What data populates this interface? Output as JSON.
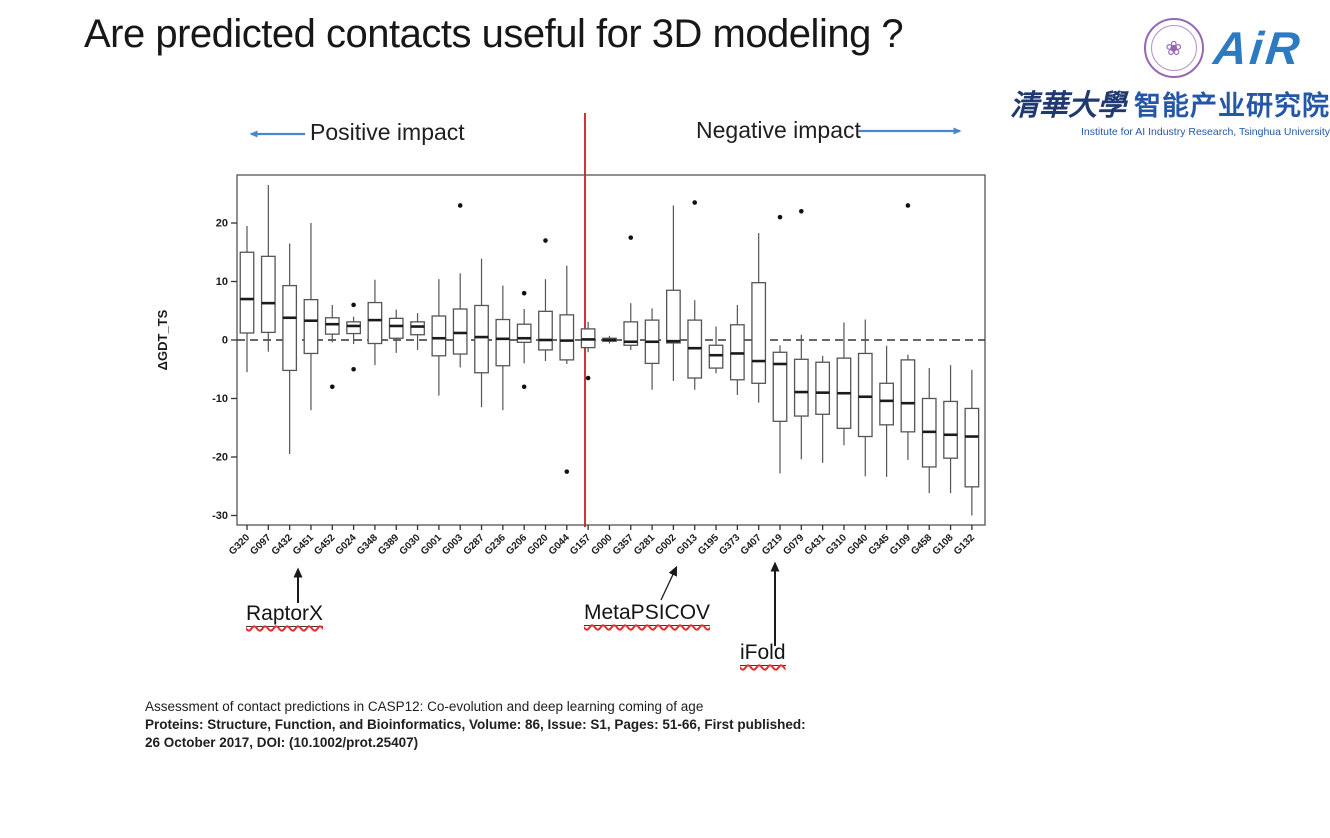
{
  "slide": {
    "title": "Are predicted contacts useful for 3D modeling ?"
  },
  "logo": {
    "seal_icon": "tsinghua-seal",
    "air_text": "AiR",
    "cn_calligraphy": "清華大學",
    "cn_name": "智能产业研究院",
    "en_caption": "Institute for AI Industry Research, Tsinghua University"
  },
  "impact": {
    "positive_label": "Positive impact",
    "negative_label": "Negative impact"
  },
  "annotations": {
    "raptorx": "RaptorX",
    "metapsicov": "MetaPSICOV",
    "ifold": "iFold"
  },
  "citation": {
    "line1": "Assessment of contact predictions in CASP12: Co-evolution and deep learning coming of age",
    "line2": "Proteins: Structure, Function, and Bioinformatics, Volume: 86, Issue: S1, Pages: 51-66, First published:",
    "line3": "26 October 2017, DOI: (10.1002/prot.25407)"
  },
  "chart_data": {
    "type": "boxplot",
    "title": "",
    "xlabel": "",
    "ylabel": "ΔGDT_TS",
    "ylim": [
      -32,
      28
    ],
    "yticks": [
      20,
      10,
      0,
      -10,
      -20,
      -30
    ],
    "zero_reference_line": "dashed",
    "divider": {
      "color": "#d03434",
      "between": [
        "G157",
        "G000"
      ]
    },
    "legend_position": "none",
    "grid": false,
    "groups": [
      {
        "label": "G320",
        "lo": -5.5,
        "q1": 1.2,
        "med": 7,
        "q3": 15,
        "hi": 19.5,
        "out": []
      },
      {
        "label": "G097",
        "lo": -2,
        "q1": 1.3,
        "med": 6.3,
        "q3": 14.3,
        "hi": 26.5,
        "out": []
      },
      {
        "label": "G432",
        "lo": -19.5,
        "q1": -5.2,
        "med": 3.8,
        "q3": 9.3,
        "hi": 16.5,
        "out": []
      },
      {
        "label": "G451",
        "lo": -12,
        "q1": -2.3,
        "med": 3.3,
        "q3": 6.9,
        "hi": 20,
        "out": []
      },
      {
        "label": "G452",
        "lo": -0.4,
        "q1": 1,
        "med": 2.7,
        "q3": 3.8,
        "hi": 6,
        "out": [
          -8
        ]
      },
      {
        "label": "G024",
        "lo": -0.7,
        "q1": 1.1,
        "med": 2.4,
        "q3": 3.1,
        "hi": 4,
        "out": [
          6,
          -5
        ]
      },
      {
        "label": "G348",
        "lo": -4.3,
        "q1": -0.6,
        "med": 3.4,
        "q3": 6.4,
        "hi": 10.3,
        "out": []
      },
      {
        "label": "G389",
        "lo": -2.2,
        "q1": 0.3,
        "med": 2.4,
        "q3": 3.7,
        "hi": 5.2,
        "out": []
      },
      {
        "label": "G030",
        "lo": -1.7,
        "q1": 0.9,
        "med": 2.3,
        "q3": 3.1,
        "hi": 4.6,
        "out": []
      },
      {
        "label": "G001",
        "lo": -9.5,
        "q1": -2.7,
        "med": 0.3,
        "q3": 4.1,
        "hi": 10.4,
        "out": []
      },
      {
        "label": "G003",
        "lo": -4.7,
        "q1": -2.4,
        "med": 1.2,
        "q3": 5.3,
        "hi": 11.4,
        "out": [
          23
        ]
      },
      {
        "label": "G287",
        "lo": -11.5,
        "q1": -5.6,
        "med": 0.5,
        "q3": 5.9,
        "hi": 13.9,
        "out": []
      },
      {
        "label": "G236",
        "lo": -12,
        "q1": -4.4,
        "med": 0.2,
        "q3": 3.5,
        "hi": 9.3,
        "out": []
      },
      {
        "label": "G206",
        "lo": -4,
        "q1": -0.4,
        "med": 0.3,
        "q3": 2.7,
        "hi": 5.3,
        "out": [
          8,
          -8
        ]
      },
      {
        "label": "G020",
        "lo": -3.6,
        "q1": -1.7,
        "med": 0,
        "q3": 4.9,
        "hi": 10.4,
        "out": [
          17
        ]
      },
      {
        "label": "G044",
        "lo": -4.1,
        "q1": -3.4,
        "med": -0.1,
        "q3": 4.3,
        "hi": 12.7,
        "out": [
          -22.5
        ]
      },
      {
        "label": "G157",
        "lo": -2.1,
        "q1": -1.3,
        "med": 0.1,
        "q3": 1.9,
        "hi": 3.1,
        "out": [
          -6.5
        ]
      },
      {
        "label": "G000",
        "lo": -0.6,
        "q1": -0.2,
        "med": 0,
        "q3": 0.3,
        "hi": 0.7,
        "out": []
      },
      {
        "label": "G357",
        "lo": -1.7,
        "q1": -0.9,
        "med": -0.3,
        "q3": 3.1,
        "hi": 6.3,
        "out": [
          17.5
        ]
      },
      {
        "label": "G281",
        "lo": -8.5,
        "q1": -4,
        "med": -0.3,
        "q3": 3.4,
        "hi": 5.4,
        "out": []
      },
      {
        "label": "G002",
        "lo": -7,
        "q1": -0.5,
        "med": -0.2,
        "q3": 8.5,
        "hi": 23,
        "out": []
      },
      {
        "label": "G013",
        "lo": -8.5,
        "q1": -6.5,
        "med": -1.4,
        "q3": 3.4,
        "hi": 6.8,
        "out": [
          23.5
        ]
      },
      {
        "label": "G195",
        "lo": -5.7,
        "q1": -4.8,
        "med": -2.6,
        "q3": -0.9,
        "hi": 2.3,
        "out": []
      },
      {
        "label": "G373",
        "lo": -9.4,
        "q1": -6.8,
        "med": -2.3,
        "q3": 2.6,
        "hi": 6,
        "out": []
      },
      {
        "label": "G407",
        "lo": -10.7,
        "q1": -7.4,
        "med": -3.6,
        "q3": 9.8,
        "hi": 18.3,
        "out": []
      },
      {
        "label": "G219",
        "lo": -22.8,
        "q1": -13.9,
        "med": -4.1,
        "q3": -2.1,
        "hi": -0.9,
        "out": [
          21
        ]
      },
      {
        "label": "G079",
        "lo": -20.4,
        "q1": -13,
        "med": -8.9,
        "q3": -3.3,
        "hi": 0.9,
        "out": [
          22
        ]
      },
      {
        "label": "G431",
        "lo": -21,
        "q1": -12.7,
        "med": -9,
        "q3": -3.8,
        "hi": -2.7,
        "out": []
      },
      {
        "label": "G310",
        "lo": -18,
        "q1": -15.1,
        "med": -9.1,
        "q3": -3.1,
        "hi": 3,
        "out": []
      },
      {
        "label": "G040",
        "lo": -23.3,
        "q1": -16.5,
        "med": -9.7,
        "q3": -2.3,
        "hi": 3.5,
        "out": []
      },
      {
        "label": "G345",
        "lo": -23.4,
        "q1": -14.5,
        "med": -10.4,
        "q3": -7.4,
        "hi": -1,
        "out": []
      },
      {
        "label": "G109",
        "lo": -20.5,
        "q1": -15.7,
        "med": -10.8,
        "q3": -3.4,
        "hi": -2.5,
        "out": [
          23
        ]
      },
      {
        "label": "G458",
        "lo": -26.2,
        "q1": -21.7,
        "med": -15.7,
        "q3": -10,
        "hi": -4.8,
        "out": []
      },
      {
        "label": "G108",
        "lo": -26.2,
        "q1": -20.2,
        "med": -16.2,
        "q3": -10.5,
        "hi": -4.3,
        "out": []
      },
      {
        "label": "G132",
        "lo": -30,
        "q1": -25.1,
        "med": -16.5,
        "q3": -11.7,
        "hi": -5.1,
        "out": []
      }
    ]
  }
}
